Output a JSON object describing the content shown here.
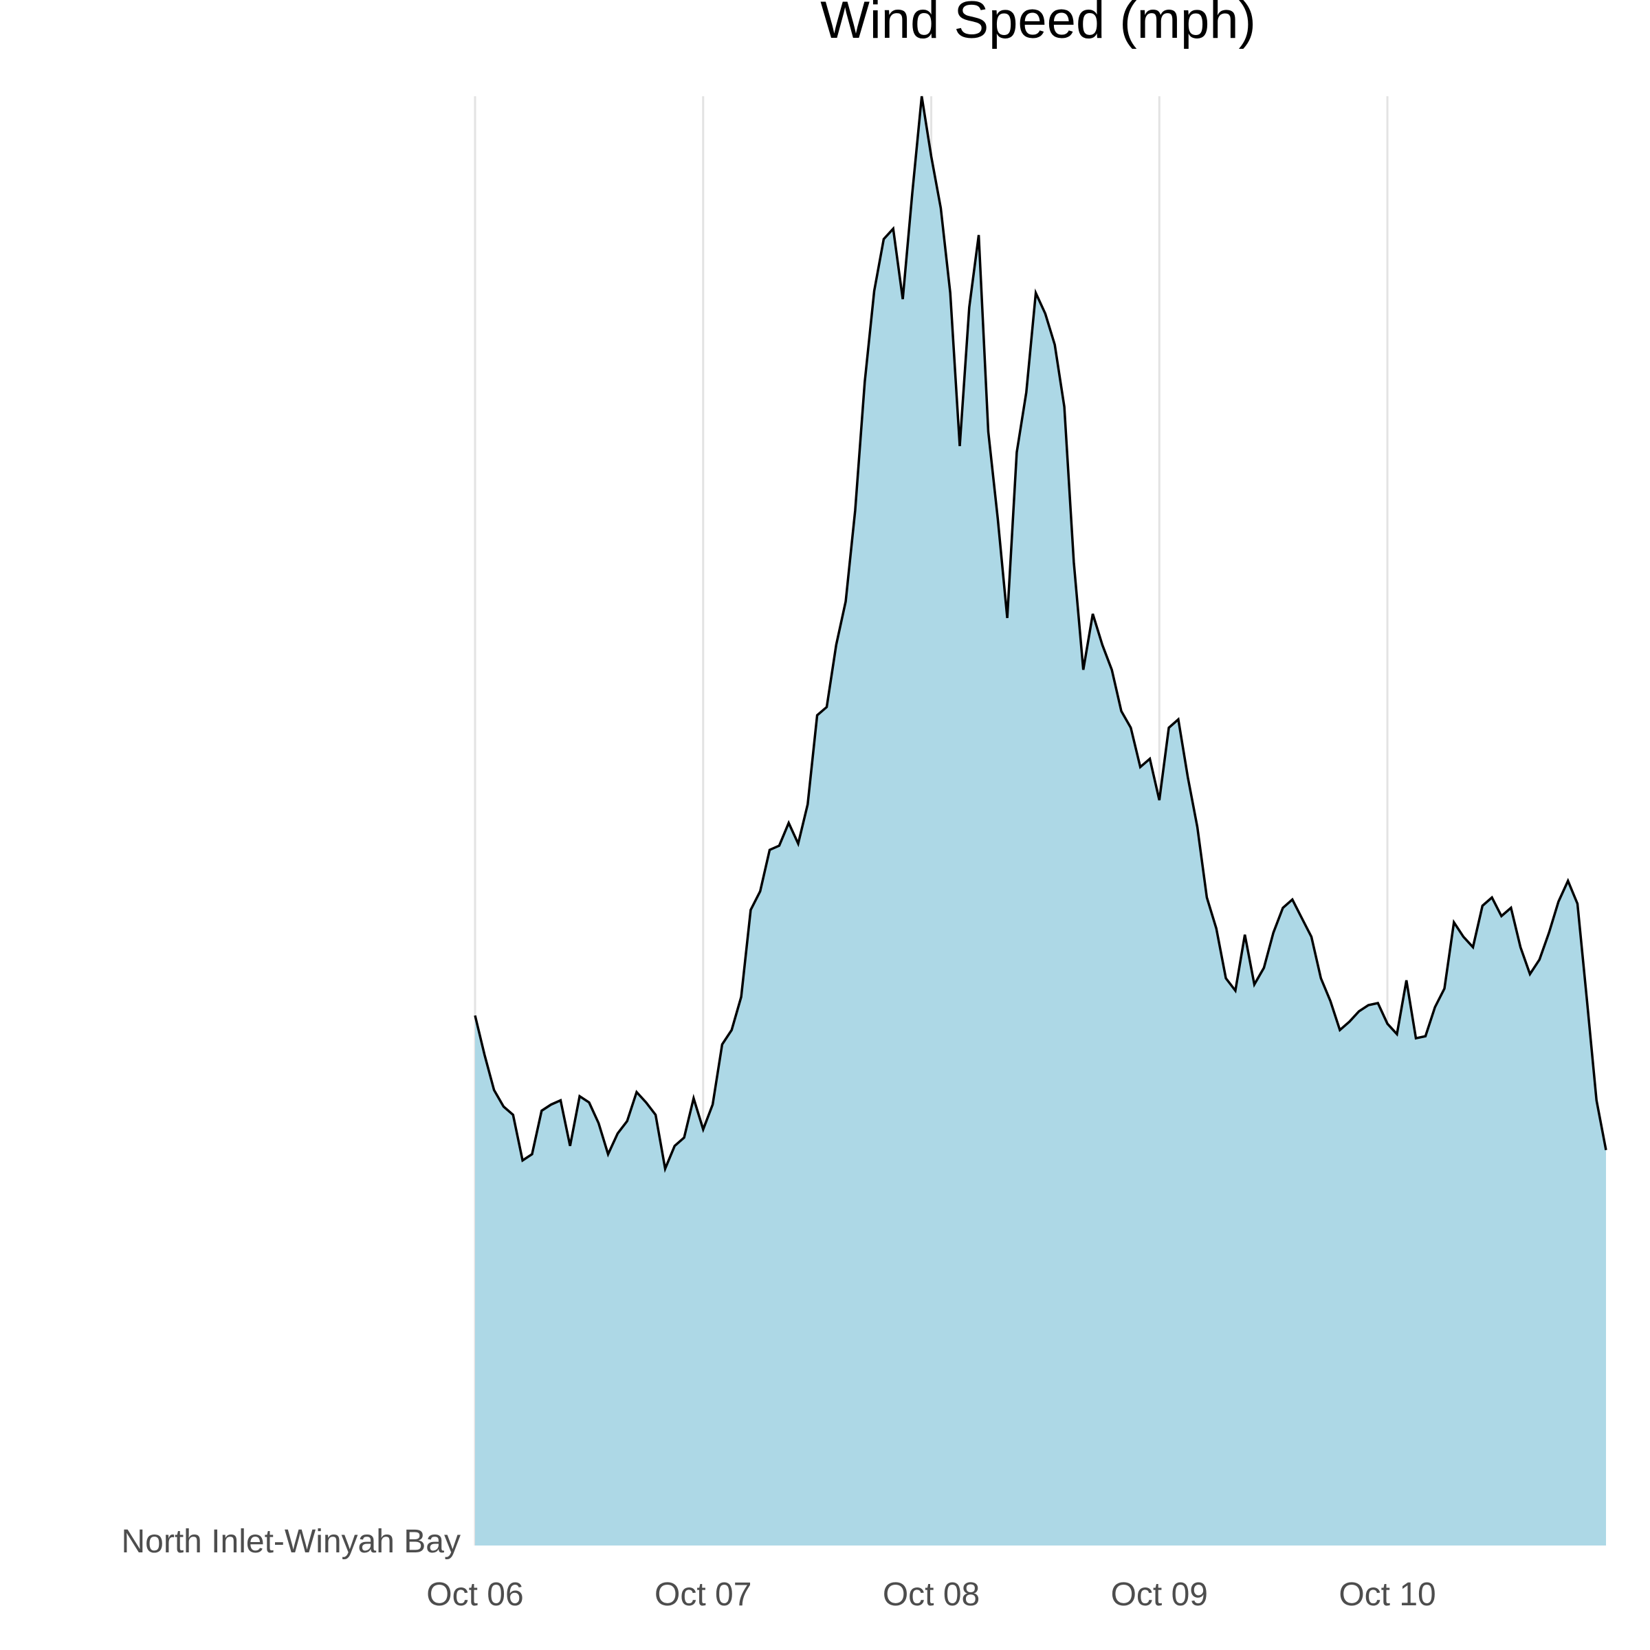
{
  "chart_data": {
    "type": "area",
    "title": "Wind Speed (mph)",
    "xlabel": "",
    "ylabel": "",
    "y_category_label": "North Inlet-Winyah Bay",
    "x_tick_labels": [
      "Oct 06",
      "Oct 07",
      "Oct 08",
      "Oct 09",
      "Oct 10"
    ],
    "x_start": "2024-10-06 00:00",
    "x_end": "2024-10-10 23:00",
    "grid": "vertical-major",
    "legend": "none",
    "colors": {
      "fill": "#add8e6",
      "line": "#000000",
      "grid": "#e3e3e3",
      "tick_text": "#4d4d4d",
      "title_text": "#000000"
    },
    "series": [
      {
        "x": [
          "2024-10-06 00:00",
          "2024-10-06 01:00",
          "2024-10-06 02:00",
          "2024-10-06 03:00",
          "2024-10-06 04:00",
          "2024-10-06 05:00",
          "2024-10-06 06:00",
          "2024-10-06 07:00",
          "2024-10-06 08:00",
          "2024-10-06 09:00",
          "2024-10-06 10:00",
          "2024-10-06 11:00",
          "2024-10-06 12:00",
          "2024-10-06 13:00",
          "2024-10-06 14:00",
          "2024-10-06 15:00",
          "2024-10-06 16:00",
          "2024-10-06 17:00",
          "2024-10-06 18:00",
          "2024-10-06 19:00",
          "2024-10-06 20:00",
          "2024-10-06 21:00",
          "2024-10-06 22:00",
          "2024-10-06 23:00",
          "2024-10-07 00:00",
          "2024-10-07 01:00",
          "2024-10-07 02:00",
          "2024-10-07 03:00",
          "2024-10-07 04:00",
          "2024-10-07 05:00",
          "2024-10-07 06:00",
          "2024-10-07 07:00",
          "2024-10-07 08:00",
          "2024-10-07 09:00",
          "2024-10-07 10:00",
          "2024-10-07 11:00",
          "2024-10-07 12:00",
          "2024-10-07 13:00",
          "2024-10-07 14:00",
          "2024-10-07 15:00",
          "2024-10-07 16:00",
          "2024-10-07 17:00",
          "2024-10-07 18:00",
          "2024-10-07 19:00",
          "2024-10-07 20:00",
          "2024-10-07 21:00",
          "2024-10-07 22:00",
          "2024-10-07 23:00",
          "2024-10-08 00:00",
          "2024-10-08 01:00",
          "2024-10-08 02:00",
          "2024-10-08 03:00",
          "2024-10-08 04:00",
          "2024-10-08 05:00",
          "2024-10-08 06:00",
          "2024-10-08 07:00",
          "2024-10-08 08:00",
          "2024-10-08 09:00",
          "2024-10-08 10:00",
          "2024-10-08 11:00",
          "2024-10-08 12:00",
          "2024-10-08 13:00",
          "2024-10-08 14:00",
          "2024-10-08 15:00",
          "2024-10-08 16:00",
          "2024-10-08 17:00",
          "2024-10-08 18:00",
          "2024-10-08 19:00",
          "2024-10-08 20:00",
          "2024-10-08 21:00",
          "2024-10-08 22:00",
          "2024-10-08 23:00",
          "2024-10-09 00:00",
          "2024-10-09 01:00",
          "2024-10-09 02:00",
          "2024-10-09 03:00",
          "2024-10-09 04:00",
          "2024-10-09 05:00",
          "2024-10-09 06:00",
          "2024-10-09 07:00",
          "2024-10-09 08:00",
          "2024-10-09 09:00",
          "2024-10-09 10:00",
          "2024-10-09 11:00",
          "2024-10-09 12:00",
          "2024-10-09 13:00",
          "2024-10-09 14:00",
          "2024-10-09 15:00",
          "2024-10-09 16:00",
          "2024-10-09 17:00",
          "2024-10-09 18:00",
          "2024-10-09 19:00",
          "2024-10-09 20:00",
          "2024-10-09 21:00",
          "2024-10-09 22:00",
          "2024-10-09 23:00",
          "2024-10-10 00:00",
          "2024-10-10 01:00",
          "2024-10-10 02:00",
          "2024-10-10 03:00",
          "2024-10-10 04:00",
          "2024-10-10 05:00",
          "2024-10-10 06:00",
          "2024-10-10 07:00",
          "2024-10-10 08:00",
          "2024-10-10 09:00",
          "2024-10-10 10:00",
          "2024-10-10 11:00",
          "2024-10-10 12:00",
          "2024-10-10 13:00",
          "2024-10-10 14:00",
          "2024-10-10 15:00",
          "2024-10-10 16:00",
          "2024-10-10 17:00",
          "2024-10-10 18:00",
          "2024-10-10 19:00",
          "2024-10-10 20:00",
          "2024-10-10 21:00",
          "2024-10-10 22:00",
          "2024-10-10 23:00"
        ],
        "values": [
          25.6,
          23.7,
          22.0,
          21.2,
          20.8,
          18.6,
          18.9,
          21.0,
          21.3,
          21.5,
          19.3,
          21.7,
          21.4,
          20.4,
          18.9,
          19.9,
          20.5,
          21.9,
          21.4,
          20.8,
          18.2,
          19.3,
          19.7,
          21.6,
          20.1,
          21.3,
          24.2,
          24.9,
          26.5,
          30.7,
          31.6,
          33.6,
          33.8,
          34.9,
          33.9,
          35.8,
          40.1,
          40.5,
          43.5,
          45.6,
          50.0,
          56.2,
          60.6,
          63.1,
          63.6,
          60.2,
          65.3,
          70.0,
          67.1,
          64.6,
          60.5,
          53.1,
          59.8,
          63.3,
          53.8,
          49.6,
          44.8,
          52.8,
          55.7,
          60.5,
          59.5,
          58.0,
          55.0,
          47.5,
          42.3,
          45.0,
          43.5,
          42.3,
          40.3,
          39.5,
          37.6,
          38.0,
          36.0,
          39.5,
          39.9,
          37.1,
          34.7,
          31.3,
          29.8,
          27.4,
          26.8,
          29.5,
          27.1,
          27.9,
          29.6,
          30.8,
          31.2,
          30.3,
          29.4,
          27.4,
          26.3,
          24.9,
          25.3,
          25.8,
          26.1,
          26.2,
          25.2,
          24.7,
          27.3,
          24.5,
          24.6,
          26.0,
          26.9,
          30.1,
          29.4,
          28.9,
          30.9,
          31.3,
          30.4,
          30.8,
          28.9,
          27.6,
          28.3,
          29.6,
          31.1,
          32.1,
          31.0,
          26.3,
          21.5,
          19.1
        ]
      }
    ]
  }
}
